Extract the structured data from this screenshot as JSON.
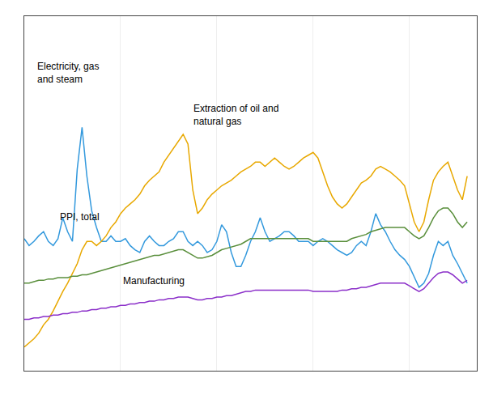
{
  "chart_data": {
    "type": "line",
    "x": [
      2000.0,
      2000.25,
      2000.5,
      2000.75,
      2001.0,
      2001.25,
      2001.5,
      2001.75,
      2002.0,
      2002.25,
      2002.5,
      2002.75,
      2003.0,
      2003.25,
      2003.5,
      2003.75,
      2004.0,
      2004.25,
      2004.5,
      2004.75,
      2005.0,
      2005.25,
      2005.5,
      2005.75,
      2006.0,
      2006.25,
      2006.5,
      2006.75,
      2007.0,
      2007.25,
      2007.5,
      2007.75,
      2008.0,
      2008.25,
      2008.5,
      2008.75,
      2009.0,
      2009.25,
      2009.5,
      2009.75,
      2010.0,
      2010.25,
      2010.5,
      2010.75,
      2011.0,
      2011.25,
      2011.5,
      2011.75,
      2012.0,
      2012.25,
      2012.5,
      2012.75,
      2013.0,
      2013.25,
      2013.5,
      2013.75,
      2014.0,
      2014.25,
      2014.5,
      2014.75,
      2015.0,
      2015.25,
      2015.5,
      2015.75,
      2016.0,
      2016.25,
      2016.5,
      2016.75,
      2017.0,
      2017.25,
      2017.5,
      2017.75,
      2018.0,
      2018.25,
      2018.5,
      2018.75,
      2019.0,
      2019.25,
      2019.5,
      2019.75,
      2020.0,
      2020.25,
      2020.5,
      2020.75,
      2021.0,
      2021.25,
      2021.5,
      2021.75,
      2022.0,
      2022.25,
      2022.5,
      2022.75,
      2023.0
    ],
    "series": [
      {
        "name": "Electricity, gas\nand steam",
        "color": "#3399DD",
        "values": [
          150,
          145,
          148,
          152,
          155,
          148,
          145,
          150,
          165,
          155,
          148,
          200,
          230,
          195,
          170,
          158,
          148,
          148,
          152,
          148,
          148,
          150,
          145,
          142,
          140,
          148,
          152,
          148,
          145,
          145,
          148,
          150,
          155,
          155,
          148,
          145,
          148,
          145,
          140,
          142,
          148,
          160,
          155,
          140,
          130,
          130,
          138,
          148,
          155,
          165,
          155,
          148,
          150,
          152,
          155,
          155,
          152,
          148,
          148,
          148,
          145,
          148,
          150,
          148,
          145,
          142,
          140,
          138,
          140,
          145,
          148,
          145,
          155,
          168,
          160,
          155,
          148,
          142,
          138,
          135,
          130,
          122,
          115,
          118,
          125,
          138,
          148,
          145,
          148,
          138,
          132,
          125,
          118
        ]
      },
      {
        "name": "Extraction of oil and\nnatural gas",
        "color": "#E8A800",
        "values": [
          72,
          75,
          78,
          82,
          88,
          92,
          98,
          105,
          112,
          118,
          125,
          132,
          142,
          148,
          148,
          145,
          148,
          152,
          158,
          162,
          168,
          172,
          175,
          178,
          182,
          188,
          192,
          195,
          198,
          205,
          210,
          215,
          220,
          225,
          218,
          185,
          168,
          172,
          178,
          182,
          185,
          188,
          190,
          192,
          195,
          198,
          200,
          202,
          205,
          205,
          202,
          205,
          208,
          205,
          202,
          200,
          202,
          205,
          208,
          210,
          212,
          208,
          198,
          188,
          180,
          175,
          172,
          175,
          180,
          185,
          190,
          192,
          195,
          200,
          202,
          200,
          198,
          195,
          192,
          188,
          175,
          162,
          155,
          162,
          178,
          192,
          198,
          202,
          205,
          195,
          185,
          178,
          195
        ]
      },
      {
        "name": "PPI, total",
        "color": "#5A8F3C",
        "values": [
          118,
          118,
          119,
          120,
          120,
          121,
          121,
          122,
          122,
          122,
          123,
          123,
          124,
          124,
          125,
          126,
          127,
          128,
          129,
          130,
          131,
          132,
          133,
          134,
          135,
          136,
          137,
          138,
          138,
          139,
          140,
          141,
          142,
          142,
          140,
          138,
          136,
          136,
          137,
          138,
          140,
          142,
          143,
          144,
          145,
          146,
          148,
          150,
          150,
          150,
          150,
          150,
          150,
          150,
          150,
          150,
          150,
          150,
          150,
          150,
          148,
          148,
          148,
          148,
          148,
          148,
          148,
          148,
          150,
          151,
          152,
          153,
          155,
          156,
          157,
          158,
          158,
          158,
          158,
          158,
          155,
          152,
          150,
          152,
          158,
          165,
          170,
          172,
          172,
          168,
          162,
          158,
          162
        ]
      },
      {
        "name": "Manufacturing",
        "color": "#8B2FC9",
        "values": [
          92,
          92,
          93,
          93,
          94,
          94,
          95,
          95,
          96,
          96,
          97,
          97,
          98,
          98,
          99,
          99,
          100,
          100,
          101,
          101,
          102,
          102,
          103,
          103,
          104,
          104,
          105,
          105,
          106,
          106,
          107,
          107,
          108,
          108,
          108,
          107,
          106,
          106,
          107,
          107,
          108,
          108,
          109,
          109,
          110,
          111,
          112,
          112,
          113,
          113,
          113,
          113,
          113,
          113,
          113,
          113,
          113,
          113,
          113,
          113,
          112,
          112,
          112,
          112,
          112,
          112,
          113,
          113,
          114,
          114,
          115,
          115,
          116,
          117,
          118,
          118,
          118,
          118,
          118,
          118,
          116,
          114,
          112,
          114,
          118,
          122,
          125,
          126,
          126,
          124,
          121,
          118,
          120
        ]
      }
    ],
    "xlim": [
      2000.0,
      2023.5
    ],
    "ylim": [
      55,
      310
    ],
    "xticks": [
      2000,
      2005,
      2010,
      2015,
      2020
    ],
    "yticks": [],
    "grid": true,
    "tick_labels": false
  }
}
